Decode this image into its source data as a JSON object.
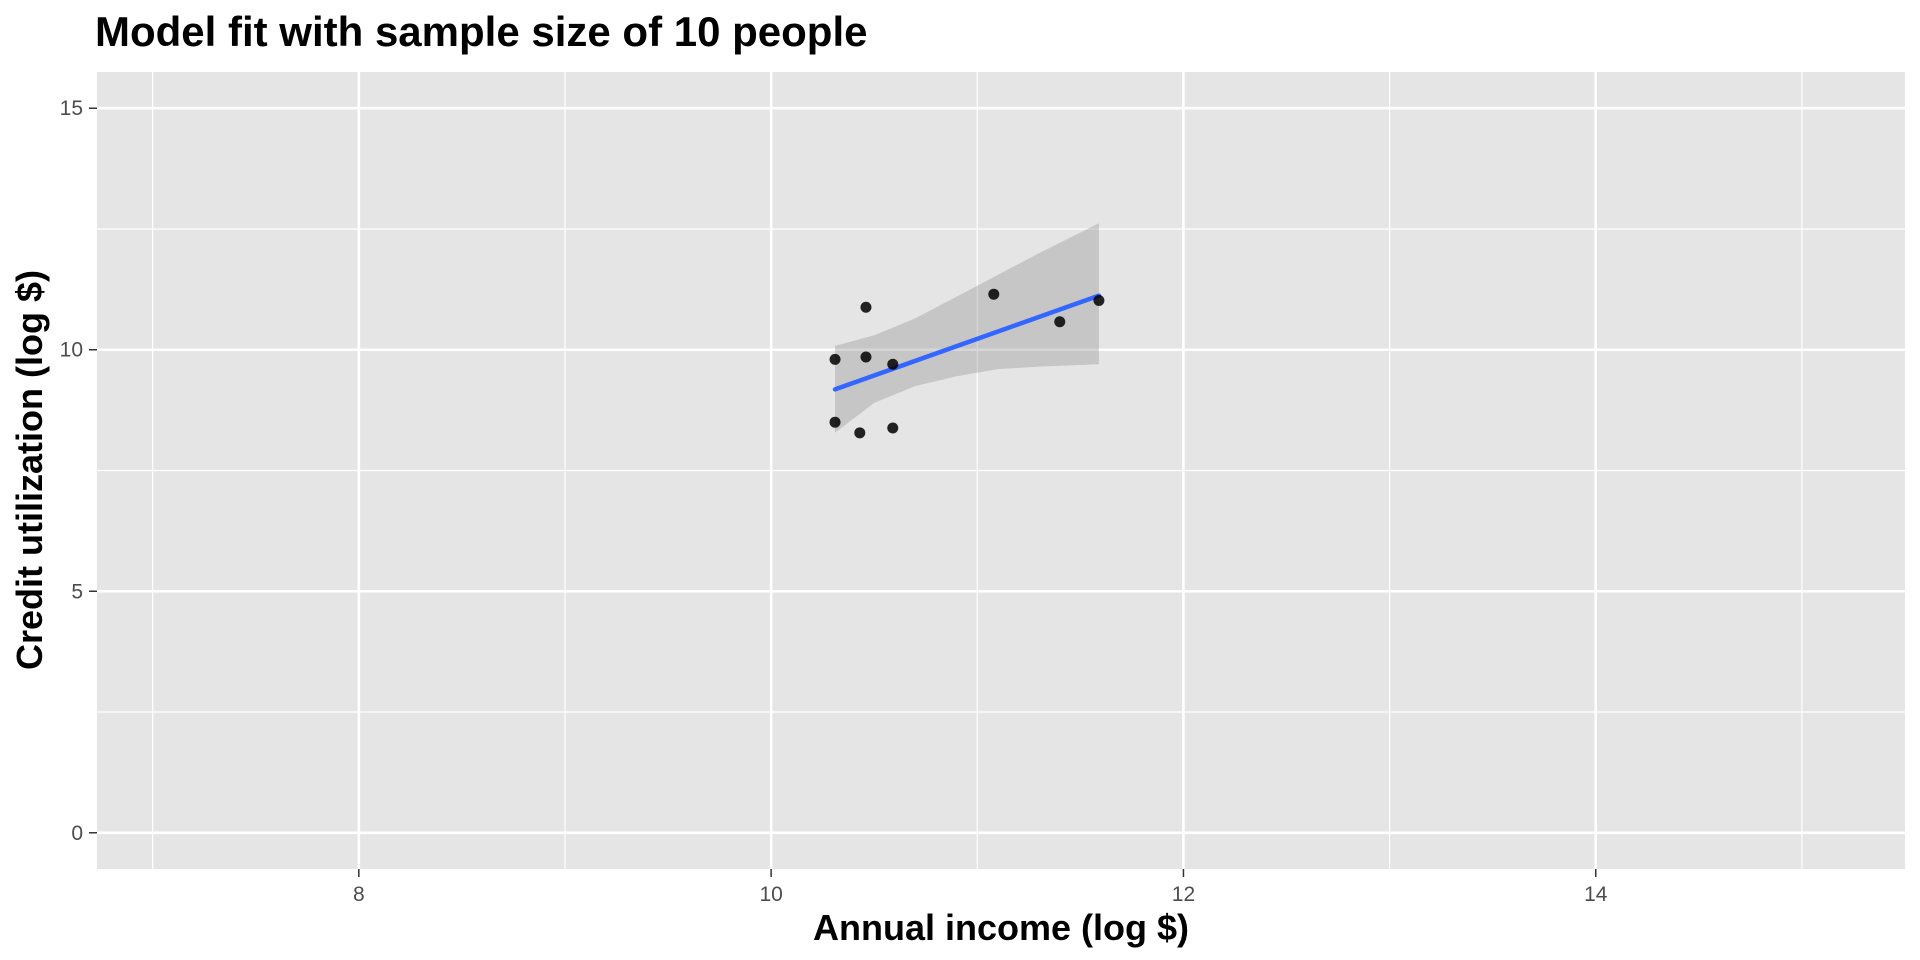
{
  "chart_data": {
    "type": "scatter",
    "title": "Model fit with sample size of 10 people",
    "xlabel": "Annual income (log $)",
    "ylabel": "Credit utilization (log $)",
    "xlim": [
      6.73,
      15.5
    ],
    "ylim": [
      -0.75,
      15.75
    ],
    "x_ticks": [
      8,
      10,
      12,
      14
    ],
    "x_tick_labels": [
      "8",
      "10",
      "12",
      "14"
    ],
    "y_ticks": [
      0,
      5,
      10,
      15
    ],
    "y_tick_labels": [
      "0",
      "5",
      "10",
      "15"
    ],
    "x_minor_ticks": [
      7,
      9,
      11,
      13,
      15
    ],
    "y_minor_ticks": [
      2.5,
      7.5,
      12.5
    ],
    "grid": true,
    "points": [
      {
        "x": 10.31,
        "y": 9.8
      },
      {
        "x": 10.31,
        "y": 8.5
      },
      {
        "x": 10.43,
        "y": 8.28
      },
      {
        "x": 10.46,
        "y": 10.88
      },
      {
        "x": 10.46,
        "y": 9.85
      },
      {
        "x": 10.59,
        "y": 9.7
      },
      {
        "x": 10.59,
        "y": 8.38
      },
      {
        "x": 11.08,
        "y": 11.15
      },
      {
        "x": 11.4,
        "y": 10.58
      },
      {
        "x": 11.59,
        "y": 11.02
      }
    ],
    "fit_line": {
      "x": [
        10.31,
        11.59
      ],
      "y": [
        9.18,
        11.12
      ]
    },
    "confidence_band": {
      "x": [
        10.31,
        10.5,
        10.7,
        10.9,
        11.1,
        11.3,
        11.59
      ],
      "upper": [
        10.08,
        10.3,
        10.65,
        11.1,
        11.55,
        12.0,
        12.62
      ],
      "lower": [
        8.28,
        8.9,
        9.25,
        9.45,
        9.6,
        9.65,
        9.7
      ]
    },
    "colors": {
      "panel": "#e5e5e5",
      "grid": "#ffffff",
      "points": "#000000",
      "fit_line": "#3366ff",
      "band": "#999999"
    }
  }
}
